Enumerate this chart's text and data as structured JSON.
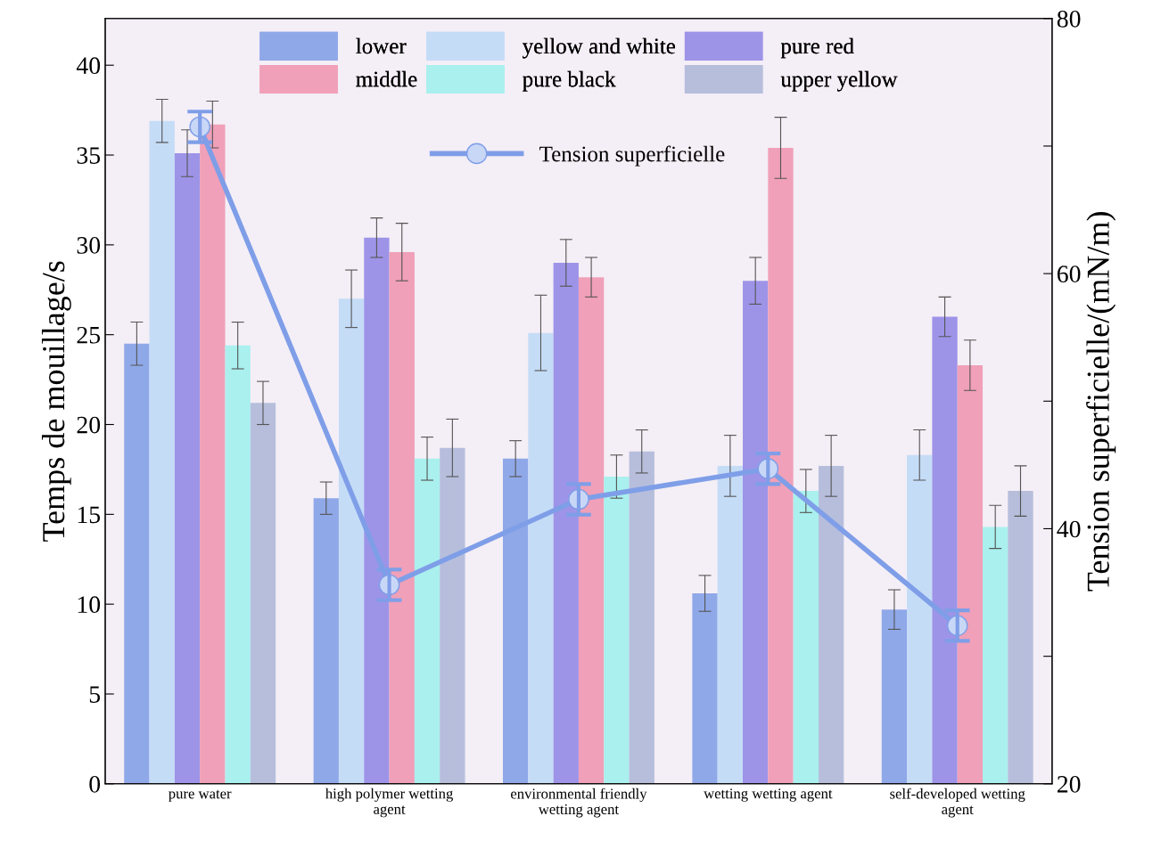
{
  "chart_data": {
    "type": "bar",
    "ylabel": "Temps de mouillage/s",
    "y2label": "Tension superficielle/(mN/m)",
    "categories": [
      "pure water",
      "high polymer wetting\nagent",
      "environmental friendly\nwetting agent",
      "wetting wetting agent",
      "self-developed wetting\nagent"
    ],
    "series": [
      {
        "name": "lower",
        "color": "#8fa8e8",
        "values": [
          24.5,
          15.9,
          18.1,
          10.6,
          9.7
        ],
        "errors": [
          1.2,
          0.9,
          1.0,
          1.0,
          1.1
        ]
      },
      {
        "name": "yellow and white",
        "color": "#c5dcf7",
        "values": [
          36.9,
          27.0,
          25.1,
          17.7,
          18.3
        ],
        "errors": [
          1.2,
          1.6,
          2.1,
          1.7,
          1.4
        ]
      },
      {
        "name": "pure red",
        "color": "#9d94e8",
        "values": [
          35.1,
          30.4,
          29.0,
          28.0,
          26.0
        ],
        "errors": [
          1.3,
          1.1,
          1.3,
          1.3,
          1.1
        ]
      },
      {
        "name": "middle",
        "color": "#f0a0b8",
        "values": [
          36.7,
          29.6,
          28.2,
          35.4,
          23.3
        ],
        "errors": [
          1.3,
          1.6,
          1.1,
          1.7,
          1.4
        ]
      },
      {
        "name": "pure black",
        "color": "#a9f0ee",
        "values": [
          24.4,
          18.1,
          17.1,
          16.3,
          14.3
        ],
        "errors": [
          1.3,
          1.2,
          1.2,
          1.2,
          1.2
        ]
      },
      {
        "name": "upper yellow",
        "color": "#b6bedc",
        "values": [
          21.2,
          18.7,
          18.5,
          17.7,
          16.3
        ],
        "errors": [
          1.2,
          1.6,
          1.2,
          1.7,
          1.4
        ]
      },
      {
        "name": "Tension superficielle",
        "type": "line",
        "axis": "y2",
        "color": "#7f9ee8",
        "values": [
          71.5,
          35.6,
          42.3,
          44.7,
          32.4
        ],
        "errors": [
          1.2,
          1.2,
          1.2,
          1.2,
          1.2
        ]
      }
    ],
    "ylim": [
      0,
      42.6
    ],
    "yticks": [
      0,
      5,
      10,
      15,
      20,
      25,
      30,
      35,
      40
    ],
    "y2lim": [
      20,
      80
    ],
    "y2ticks": [
      20,
      {
        "value": 30,
        "label": null
      },
      40,
      {
        "value": 50,
        "label": null
      },
      60,
      {
        "value": 70,
        "label": null
      },
      80
    ],
    "marker": "circle",
    "line_style": "solid",
    "legend": "top",
    "grid": false
  }
}
